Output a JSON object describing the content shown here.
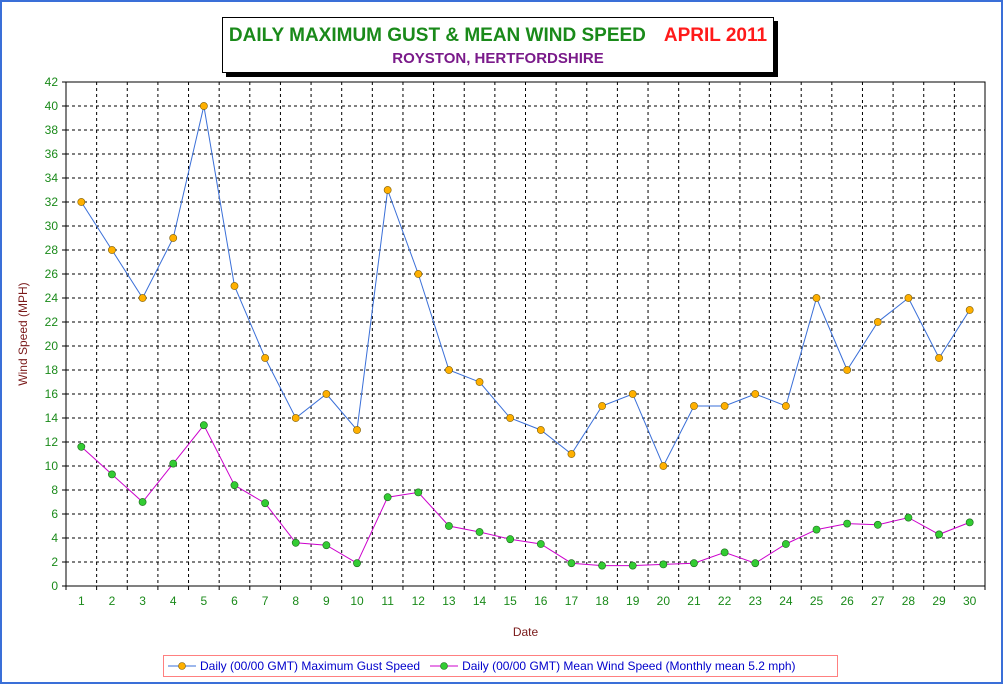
{
  "chart_data": {
    "type": "line",
    "title": "DAILY MAXIMUM GUST & MEAN WIND SPEED",
    "title_date": "APRIL 2011",
    "subtitle": "ROYSTON, HERTFORDSHIRE",
    "xlabel": "Date",
    "ylabel": "Wind Speed (MPH)",
    "ylim": [
      0,
      42
    ],
    "ytick_step": 2,
    "x": [
      1,
      2,
      3,
      4,
      5,
      6,
      7,
      8,
      9,
      10,
      11,
      12,
      13,
      14,
      15,
      16,
      17,
      18,
      19,
      20,
      21,
      22,
      23,
      24,
      25,
      26,
      27,
      28,
      29,
      30
    ],
    "grid": true,
    "legend_position": "bottom",
    "series": [
      {
        "name": "Daily (00/00 GMT) Maximum Gust Speed",
        "line_color": "#3a6fd8",
        "marker_color": "#ffb000",
        "values": [
          32,
          28,
          24,
          29,
          40,
          25,
          19,
          14,
          16,
          13,
          33,
          26,
          18,
          17,
          14,
          13,
          11,
          15,
          16,
          10,
          15,
          15,
          16,
          15,
          24,
          18,
          22,
          24,
          19,
          23
        ]
      },
      {
        "name": "Daily (00/00 GMT) Mean Wind Speed (Monthly mean 5.2 mph)",
        "line_color": "#cc00cc",
        "marker_color": "#33cc33",
        "values": [
          11.6,
          9.3,
          7.0,
          10.2,
          13.4,
          8.4,
          6.9,
          3.6,
          3.4,
          1.9,
          7.4,
          7.8,
          5.0,
          4.5,
          3.9,
          3.5,
          1.9,
          1.7,
          1.7,
          1.8,
          1.9,
          2.8,
          1.9,
          3.5,
          4.7,
          5.2,
          5.1,
          5.7,
          4.3,
          5.3
        ]
      }
    ]
  }
}
